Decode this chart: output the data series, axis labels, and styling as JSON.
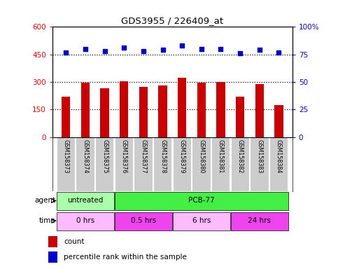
{
  "title": "GDS3955 / 226409_at",
  "samples": [
    "GSM158373",
    "GSM158374",
    "GSM158375",
    "GSM158376",
    "GSM158377",
    "GSM158378",
    "GSM158379",
    "GSM158380",
    "GSM158381",
    "GSM158382",
    "GSM158383",
    "GSM158384"
  ],
  "counts": [
    220,
    298,
    268,
    305,
    272,
    280,
    325,
    298,
    302,
    220,
    290,
    175
  ],
  "percentiles": [
    77,
    80,
    78,
    81,
    78,
    79,
    83,
    80,
    80,
    76,
    79,
    77
  ],
  "bar_color": "#cc0000",
  "dot_color": "#0000cc",
  "ylim_left": [
    0,
    600
  ],
  "ylim_right": [
    0,
    100
  ],
  "yticks_left": [
    0,
    150,
    300,
    450,
    600
  ],
  "yticks_right": [
    0,
    25,
    50,
    75,
    100
  ],
  "ytick_labels_left": [
    "0",
    "150",
    "300",
    "450",
    "600"
  ],
  "ytick_labels_right": [
    "0",
    "25",
    "50",
    "75",
    "100%"
  ],
  "agent_groups": [
    {
      "label": "untreated",
      "start": 0,
      "end": 3,
      "color": "#aaffaa"
    },
    {
      "label": "PCB-77",
      "start": 3,
      "end": 12,
      "color": "#44ee44"
    }
  ],
  "time_groups": [
    {
      "label": "0 hrs",
      "start": 0,
      "end": 3,
      "color": "#ffbbff"
    },
    {
      "label": "0.5 hrs",
      "start": 3,
      "end": 6,
      "color": "#ee44ee"
    },
    {
      "label": "6 hrs",
      "start": 6,
      "end": 9,
      "color": "#ffbbff"
    },
    {
      "label": "24 hrs",
      "start": 9,
      "end": 12,
      "color": "#ee44ee"
    }
  ],
  "legend_count_label": "count",
  "legend_pct_label": "percentile rank within the sample",
  "agent_label": "agent",
  "time_label": "time",
  "bg_color": "#ffffff",
  "plot_bg_color": "#ffffff",
  "sample_box_color": "#cccccc",
  "grid_color": "#000000",
  "dot_size": 20
}
